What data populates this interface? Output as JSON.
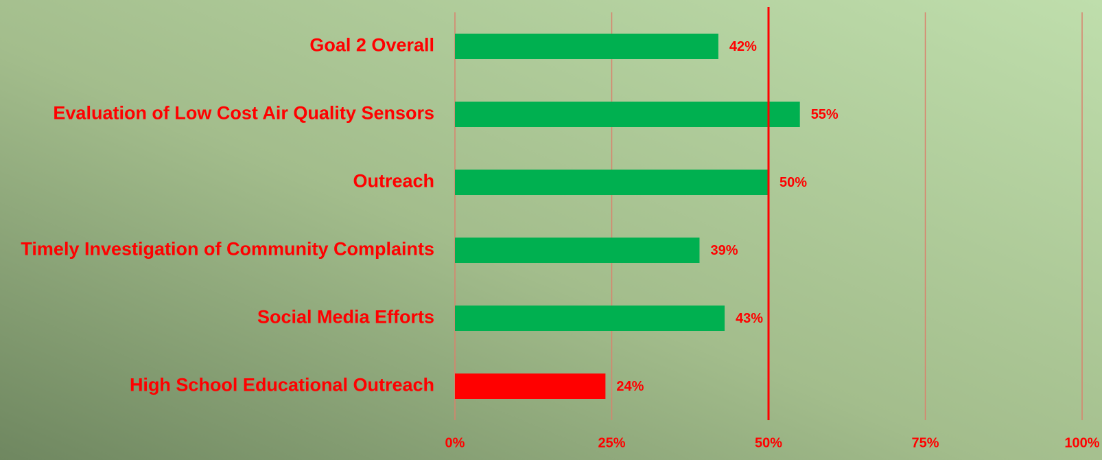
{
  "chart_data": {
    "type": "bar",
    "orientation": "horizontal",
    "categories": [
      "Goal 2 Overall",
      "Evaluation of Low Cost Air Quality Sensors",
      "Outreach",
      "Timely Investigation of Community Complaints",
      "Social Media Efforts",
      "High School Educational Outreach"
    ],
    "values": [
      42,
      55,
      50,
      39,
      43,
      24
    ],
    "value_labels": [
      "42%",
      "55%",
      "50%",
      "39%",
      "43%",
      "24%"
    ],
    "colors": [
      "#00b050",
      "#00b050",
      "#00b050",
      "#00b050",
      "#00b050",
      "#ff0000"
    ],
    "xlim": [
      0,
      100
    ],
    "xticks": [
      {
        "value": 0,
        "label": "0%"
      },
      {
        "value": 25,
        "label": "25%"
      },
      {
        "value": 50,
        "label": "50%"
      },
      {
        "value": 75,
        "label": "75%"
      },
      {
        "value": 100,
        "label": "100%"
      }
    ],
    "grid": true,
    "reference_line": 50
  }
}
